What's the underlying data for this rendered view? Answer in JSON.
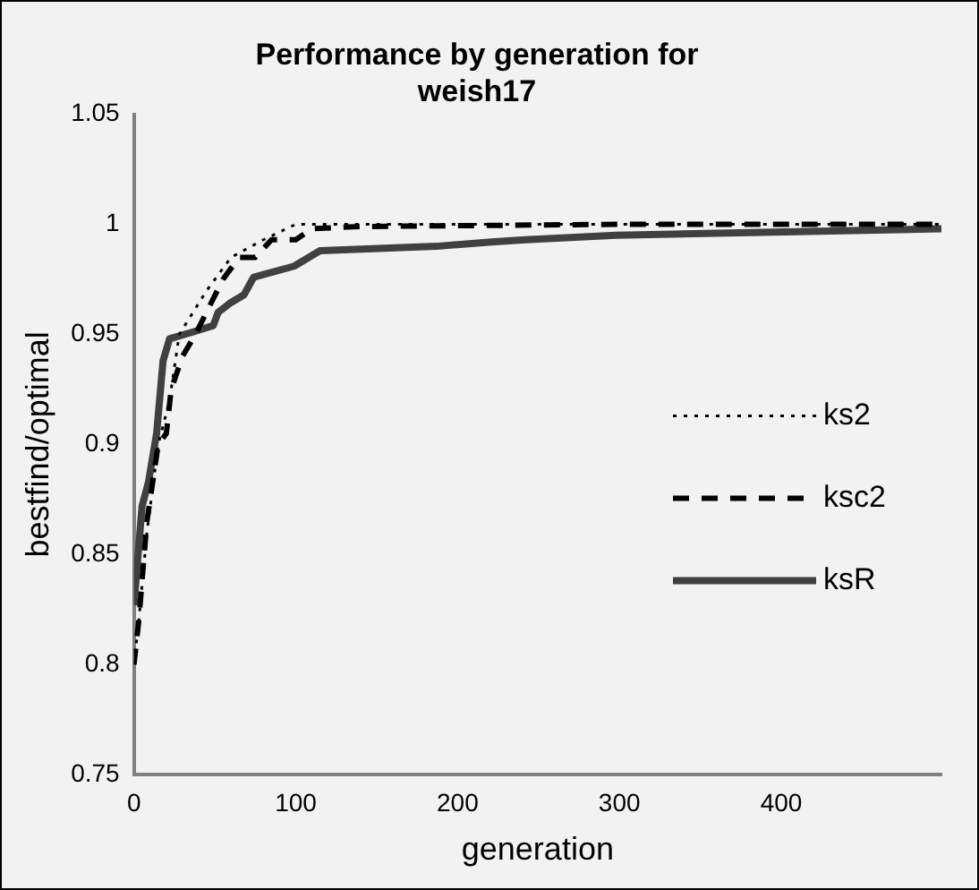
{
  "chart_data": {
    "type": "line",
    "title": "Performance by generation for weish17",
    "xlabel": "generation",
    "ylabel": "bestfind/optimal",
    "xlim": [
      0,
      499
    ],
    "xticks": [
      0,
      100,
      200,
      300,
      400
    ],
    "ylim": [
      0.75,
      1.05
    ],
    "yticks": [
      0.75,
      0.8,
      0.85,
      0.9,
      0.95,
      1,
      1.05
    ],
    "grid": false,
    "legend": "right",
    "marker": "none",
    "series": [
      {
        "name": "ks2",
        "color": "#000000",
        "line_style": "dotted",
        "x": [
          0,
          3,
          8,
          15,
          22,
          28,
          45,
          60,
          80,
          100,
          499
        ],
        "values": [
          0.8,
          0.82,
          0.86,
          0.9,
          0.92,
          0.95,
          0.97,
          0.985,
          0.993,
          1.0,
          1.0
        ]
      },
      {
        "name": "ksc2",
        "color": "#000000",
        "line_style": "dashed",
        "x": [
          0,
          3,
          8,
          15,
          20,
          23,
          30,
          38,
          55,
          65,
          75,
          85,
          100,
          110,
          140,
          300,
          499
        ],
        "values": [
          0.8,
          0.82,
          0.865,
          0.9,
          0.905,
          0.925,
          0.94,
          0.95,
          0.975,
          0.985,
          0.985,
          0.993,
          0.993,
          0.998,
          0.999,
          1.0,
          1.0
        ]
      },
      {
        "name": "ksR",
        "color": "#404040",
        "line_style": "solid",
        "x": [
          0,
          5,
          9,
          14,
          18,
          22,
          36,
          49,
          52,
          59,
          68,
          74,
          99,
          115,
          187,
          221,
          242,
          298,
          499
        ],
        "values": [
          0.827,
          0.872,
          0.883,
          0.905,
          0.938,
          0.948,
          0.951,
          0.954,
          0.96,
          0.964,
          0.968,
          0.976,
          0.981,
          0.988,
          0.99,
          0.992,
          0.993,
          0.995,
          0.998
        ]
      }
    ]
  }
}
